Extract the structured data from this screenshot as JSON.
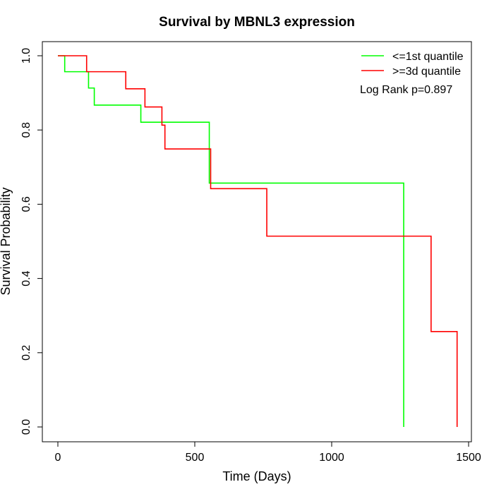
{
  "chart_data": {
    "type": "line",
    "title": "Survival by MBNL3 expression",
    "xlabel": "Time (Days)",
    "ylabel": "Survival Probability",
    "xlim": [
      0,
      1500
    ],
    "ylim": [
      0,
      1
    ],
    "x_ticks": [
      0,
      500,
      1000,
      1500
    ],
    "y_ticks": [
      0.0,
      0.2,
      0.4,
      0.6,
      0.8,
      1.0
    ],
    "x_tick_labels": [
      "0",
      "500",
      "1000",
      "1500"
    ],
    "y_tick_labels": [
      "0.0",
      "0.2",
      "0.4",
      "0.6",
      "0.8",
      "1.0"
    ],
    "grid": false,
    "legend_position": "top-right",
    "annotation": "Log Rank p=0.897",
    "series": [
      {
        "name": "<=1st quantile",
        "color": "#00ff00",
        "steps": [
          [
            0,
            1.0
          ],
          [
            25,
            0.957
          ],
          [
            112,
            0.913
          ],
          [
            133,
            0.867
          ],
          [
            303,
            0.821
          ],
          [
            553,
            0.657
          ],
          [
            1263,
            0.0
          ]
        ]
      },
      {
        "name": ">=3d quantile",
        "color": "#ff0000",
        "steps": [
          [
            0,
            1.0
          ],
          [
            105,
            0.957
          ],
          [
            248,
            0.911
          ],
          [
            318,
            0.862
          ],
          [
            380,
            0.813
          ],
          [
            391,
            0.749
          ],
          [
            558,
            0.642
          ],
          [
            763,
            0.514
          ],
          [
            1363,
            0.257
          ],
          [
            1458,
            0.0
          ]
        ]
      }
    ]
  }
}
